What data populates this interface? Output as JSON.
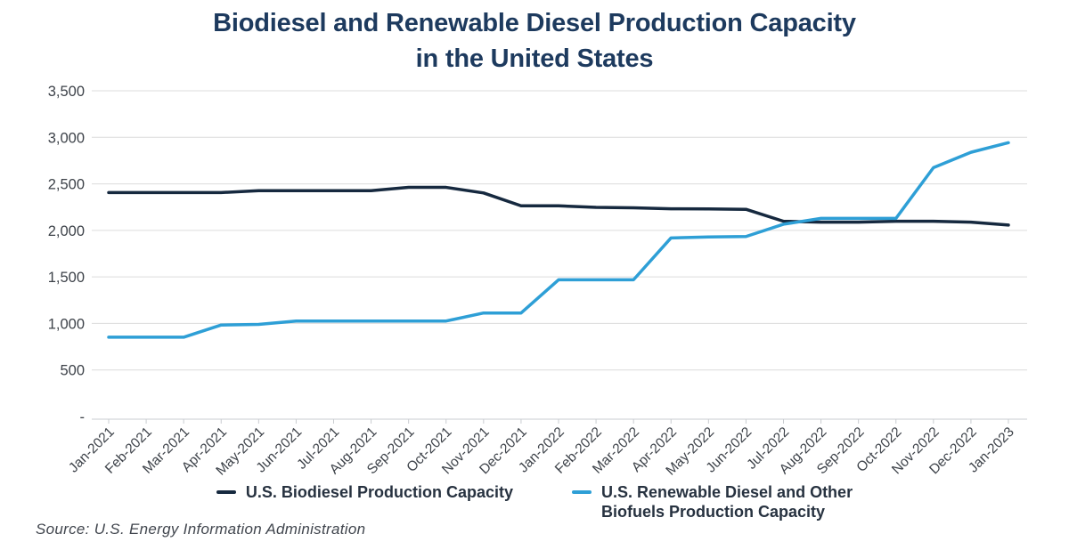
{
  "title": {
    "line1": "Biodiesel and Renewable Diesel Production Capacity",
    "line2": "in the United States"
  },
  "legend": [
    {
      "label": "U.S. Biodiesel Production Capacity",
      "color": "#16293f"
    },
    {
      "label": "U.S. Renewable Diesel and Other\nBiofuels Production Capacity",
      "color": "#2e9fd6"
    }
  ],
  "source": "Source: U.S. Energy Information Administration",
  "chart_data": {
    "type": "line",
    "title": "Biodiesel and Renewable Diesel Production Capacity in the United States",
    "xlabel": "",
    "ylabel": "",
    "ylim": [
      0,
      3500
    ],
    "grid": true,
    "legend_position": "bottom",
    "categories": [
      "Jan-2021",
      "Feb-2021",
      "Mar-2021",
      "Apr-2021",
      "May-2021",
      "Jun-2021",
      "Jul-2021",
      "Aug-2021",
      "Sep-2021",
      "Oct-2021",
      "Nov-2021",
      "Dec-2021",
      "Jan-2022",
      "Feb-2022",
      "Mar-2022",
      "Apr-2022",
      "May-2022",
      "Jun-2022",
      "Jul-2022",
      "Aug-2022",
      "Sep-2022",
      "Oct-2022",
      "Nov-2022",
      "Dec-2022",
      "Jan-2023"
    ],
    "series": [
      {
        "name": "U.S. Biodiesel Production Capacity",
        "color": "#16293f",
        "values": [
          2406,
          2406,
          2406,
          2406,
          2427,
          2427,
          2427,
          2427,
          2462,
          2462,
          2402,
          2264,
          2264,
          2247,
          2242,
          2232,
          2231,
          2226,
          2098,
          2088,
          2088,
          2098,
          2098,
          2088,
          2057
        ]
      },
      {
        "name": "U.S. Renewable Diesel and Other Biofuels Production Capacity",
        "color": "#2e9fd6",
        "values": [
          852,
          852,
          852,
          983,
          990,
          1026,
          1026,
          1026,
          1026,
          1026,
          1112,
          1112,
          1469,
          1469,
          1469,
          1919,
          1929,
          1934,
          2066,
          2129,
          2129,
          2129,
          2674,
          2839,
          2942
        ]
      }
    ],
    "ytick_values": [
      0,
      500,
      1000,
      1500,
      2000,
      2500,
      3000,
      3500
    ],
    "ytick_labels": [
      "-",
      "500",
      "1,000",
      "1,500",
      "2,000",
      "2,500",
      "3,000",
      "3,500"
    ]
  },
  "style": {
    "gridline_color": "#dcdcdc",
    "axis_line_color": "#c9ccd0",
    "tick_label_color": "#3d4249"
  }
}
